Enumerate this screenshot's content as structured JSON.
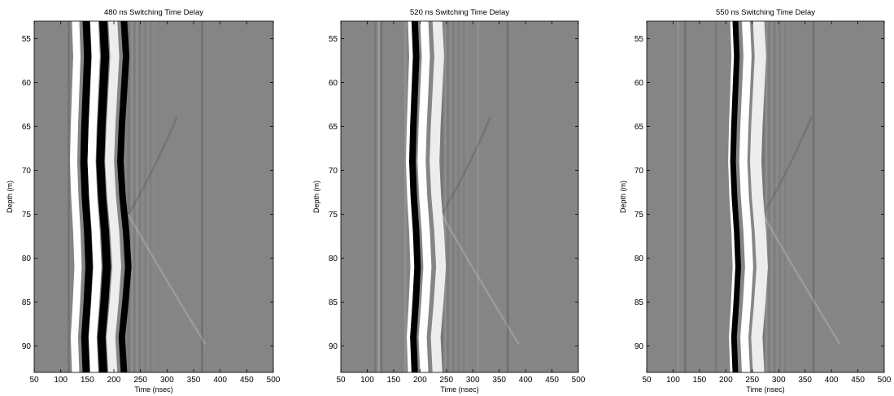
{
  "chart_data": [
    {
      "type": "heatmap",
      "title": "480 ns Switching Time Delay",
      "xlabel": "Time (nsec)",
      "ylabel": "Depth (m)",
      "xlim": [
        50,
        500
      ],
      "ylim": [
        53,
        93
      ],
      "y_reversed": true,
      "xticks": [
        50,
        100,
        150,
        200,
        250,
        300,
        350,
        400,
        450,
        500
      ],
      "yticks": [
        55,
        60,
        65,
        70,
        75,
        80,
        85,
        90
      ],
      "colormap": "grayscale",
      "grid": false,
      "direct_arrival_bands": [
        {
          "time_ns": 128,
          "tone": "white"
        },
        {
          "time_ns": 148,
          "tone": "black"
        },
        {
          "time_ns": 163,
          "tone": "white"
        },
        {
          "time_ns": 180,
          "tone": "black"
        },
        {
          "time_ns": 198,
          "tone": "white"
        },
        {
          "time_ns": 219,
          "tone": "black"
        }
      ]
    },
    {
      "type": "heatmap",
      "title": "520 ns Switching Time Delay",
      "xlabel": "Time (nsec)",
      "ylabel": "Depth (m)",
      "xlim": [
        50,
        500
      ],
      "ylim": [
        53,
        93
      ],
      "y_reversed": true,
      "xticks": [
        50,
        100,
        150,
        200,
        250,
        300,
        350,
        400,
        450,
        500
      ],
      "yticks": [
        55,
        60,
        65,
        70,
        75,
        80,
        85,
        90
      ],
      "colormap": "grayscale",
      "grid": false,
      "direct_arrival_bands": [
        {
          "time_ns": 181,
          "tone": "white"
        },
        {
          "time_ns": 190,
          "tone": "black"
        },
        {
          "time_ns": 208,
          "tone": "white"
        },
        {
          "time_ns": 233,
          "tone": "white"
        }
      ]
    },
    {
      "type": "heatmap",
      "title": "550 ns Switching Time Delay",
      "xlabel": "Time (nsec)",
      "ylabel": "Depth (m)",
      "xlim": [
        50,
        500
      ],
      "ylim": [
        53,
        93
      ],
      "y_reversed": true,
      "xticks": [
        50,
        100,
        150,
        200,
        250,
        300,
        350,
        400,
        450,
        500
      ],
      "yticks": [
        55,
        60,
        65,
        70,
        75,
        80,
        85,
        90
      ],
      "colormap": "grayscale",
      "grid": false,
      "direct_arrival_bands": [
        {
          "time_ns": 212,
          "tone": "white"
        },
        {
          "time_ns": 218,
          "tone": "black"
        },
        {
          "time_ns": 238,
          "tone": "white"
        },
        {
          "time_ns": 262,
          "tone": "white"
        }
      ]
    }
  ]
}
